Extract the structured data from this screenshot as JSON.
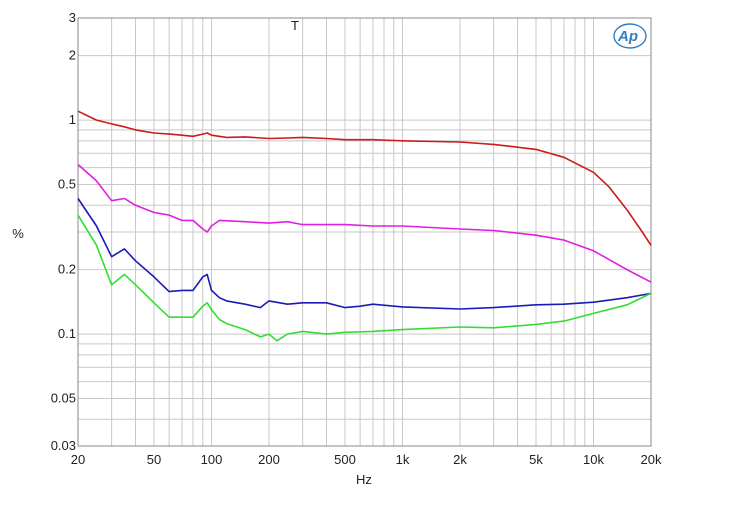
{
  "chart_data": {
    "type": "line",
    "title": "T",
    "xlabel": "Hz",
    "ylabel": "%",
    "xscale": "log",
    "yscale": "log",
    "xlim": [
      20,
      20000
    ],
    "ylim": [
      0.03,
      3
    ],
    "grid": true,
    "legend": "none",
    "logo": "Ap",
    "xticks": [
      {
        "v": 20,
        "label": "20"
      },
      {
        "v": 50,
        "label": "50"
      },
      {
        "v": 100,
        "label": "100"
      },
      {
        "v": 200,
        "label": "200"
      },
      {
        "v": 500,
        "label": "500"
      },
      {
        "v": 1000,
        "label": "1k"
      },
      {
        "v": 2000,
        "label": "2k"
      },
      {
        "v": 5000,
        "label": "5k"
      },
      {
        "v": 10000,
        "label": "10k"
      },
      {
        "v": 20000,
        "label": "20k"
      }
    ],
    "yticks": [
      {
        "v": 0.03,
        "label": "0.03"
      },
      {
        "v": 0.05,
        "label": "0.05"
      },
      {
        "v": 0.1,
        "label": "0.1"
      },
      {
        "v": 0.2,
        "label": "0.2"
      },
      {
        "v": 0.5,
        "label": "0.5"
      },
      {
        "v": 1,
        "label": "1"
      },
      {
        "v": 2,
        "label": "2"
      },
      {
        "v": 3,
        "label": "3"
      }
    ],
    "series": [
      {
        "color": "#cc1a1a",
        "x": [
          20,
          25,
          30,
          35,
          40,
          50,
          60,
          70,
          80,
          90,
          95,
          100,
          120,
          150,
          200,
          250,
          300,
          400,
          500,
          700,
          1000,
          2000,
          3000,
          5000,
          7000,
          10000,
          12000,
          15000,
          18000,
          20000
        ],
        "y": [
          1.1,
          1.0,
          0.96,
          0.93,
          0.9,
          0.87,
          0.86,
          0.85,
          0.84,
          0.86,
          0.87,
          0.85,
          0.83,
          0.835,
          0.82,
          0.825,
          0.83,
          0.82,
          0.81,
          0.81,
          0.8,
          0.79,
          0.77,
          0.73,
          0.67,
          0.57,
          0.49,
          0.38,
          0.3,
          0.26
        ]
      },
      {
        "color": "#e020e0",
        "x": [
          20,
          25,
          30,
          35,
          40,
          50,
          60,
          70,
          80,
          90,
          95,
          100,
          110,
          150,
          200,
          250,
          300,
          500,
          700,
          1000,
          2000,
          3000,
          5000,
          7000,
          10000,
          15000,
          20000
        ],
        "y": [
          0.62,
          0.52,
          0.42,
          0.43,
          0.4,
          0.37,
          0.36,
          0.34,
          0.34,
          0.31,
          0.3,
          0.32,
          0.34,
          0.335,
          0.33,
          0.335,
          0.325,
          0.325,
          0.32,
          0.32,
          0.31,
          0.305,
          0.29,
          0.275,
          0.245,
          0.2,
          0.175
        ]
      },
      {
        "color": "#1a1ab8",
        "x": [
          20,
          25,
          30,
          35,
          40,
          50,
          60,
          70,
          80,
          90,
          95,
          100,
          110,
          120,
          150,
          180,
          200,
          250,
          300,
          400,
          500,
          600,
          700,
          1000,
          2000,
          3000,
          5000,
          7000,
          10000,
          15000,
          20000
        ],
        "y": [
          0.43,
          0.32,
          0.23,
          0.25,
          0.22,
          0.185,
          0.158,
          0.16,
          0.16,
          0.185,
          0.19,
          0.16,
          0.148,
          0.143,
          0.138,
          0.133,
          0.143,
          0.138,
          0.14,
          0.14,
          0.133,
          0.135,
          0.138,
          0.134,
          0.131,
          0.133,
          0.137,
          0.138,
          0.141,
          0.148,
          0.155
        ]
      },
      {
        "color": "#33dd33",
        "x": [
          20,
          25,
          30,
          35,
          40,
          50,
          60,
          70,
          80,
          90,
          95,
          100,
          110,
          120,
          150,
          180,
          200,
          220,
          250,
          300,
          400,
          500,
          700,
          1000,
          2000,
          3000,
          5000,
          7000,
          10000,
          15000,
          20000
        ],
        "y": [
          0.36,
          0.26,
          0.17,
          0.19,
          0.17,
          0.14,
          0.12,
          0.12,
          0.12,
          0.135,
          0.14,
          0.13,
          0.117,
          0.112,
          0.105,
          0.097,
          0.1,
          0.093,
          0.1,
          0.103,
          0.1,
          0.102,
          0.103,
          0.105,
          0.108,
          0.107,
          0.111,
          0.115,
          0.125,
          0.137,
          0.155
        ]
      }
    ]
  }
}
